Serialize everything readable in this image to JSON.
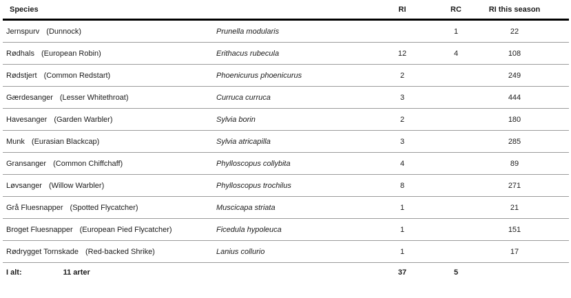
{
  "header": {
    "species": "Species",
    "ri": "RI",
    "rc": "RC",
    "ri_season": "RI this season"
  },
  "rows": [
    {
      "danish": "Jernspurv",
      "english": "(Dunnock)",
      "latin": "Prunella modularis",
      "ri": "",
      "rc": "1",
      "season": "22"
    },
    {
      "danish": "Rødhals",
      "english": "(European Robin)",
      "latin": "Erithacus rubecula",
      "ri": "12",
      "rc": "4",
      "season": "108"
    },
    {
      "danish": "Rødstjert",
      "english": "(Common Redstart)",
      "latin": "Phoenicurus phoenicurus",
      "ri": "2",
      "rc": "",
      "season": "249"
    },
    {
      "danish": "Gærdesanger",
      "english": "(Lesser Whitethroat)",
      "latin": "Curruca curruca",
      "ri": "3",
      "rc": "",
      "season": "444"
    },
    {
      "danish": "Havesanger",
      "english": "(Garden Warbler)",
      "latin": "Sylvia borin",
      "ri": "2",
      "rc": "",
      "season": "180"
    },
    {
      "danish": "Munk",
      "english": "(Eurasian Blackcap)",
      "latin": "Sylvia atricapilla",
      "ri": "3",
      "rc": "",
      "season": "285"
    },
    {
      "danish": "Gransanger",
      "english": "(Common Chiffchaff)",
      "latin": "Phylloscopus collybita",
      "ri": "4",
      "rc": "",
      "season": "89"
    },
    {
      "danish": "Løvsanger",
      "english": "(Willow Warbler)",
      "latin": "Phylloscopus trochilus",
      "ri": "8",
      "rc": "",
      "season": "271"
    },
    {
      "danish": "Grå Fluesnapper",
      "english": "(Spotted Flycatcher)",
      "latin": "Muscicapa striata",
      "ri": "1",
      "rc": "",
      "season": "21"
    },
    {
      "danish": "Broget Fluesnapper",
      "english": "(European Pied Flycatcher)",
      "latin": "Ficedula hypoleuca",
      "ri": "1",
      "rc": "",
      "season": "151"
    },
    {
      "danish": "Rødrygget Tornskade",
      "english": "(Red-backed Shrike)",
      "latin": "Lanius collurio",
      "ri": "1",
      "rc": "",
      "season": "17"
    }
  ],
  "total": {
    "label": "I alt:",
    "count": "11 arter",
    "ri": "37",
    "rc": "5"
  }
}
